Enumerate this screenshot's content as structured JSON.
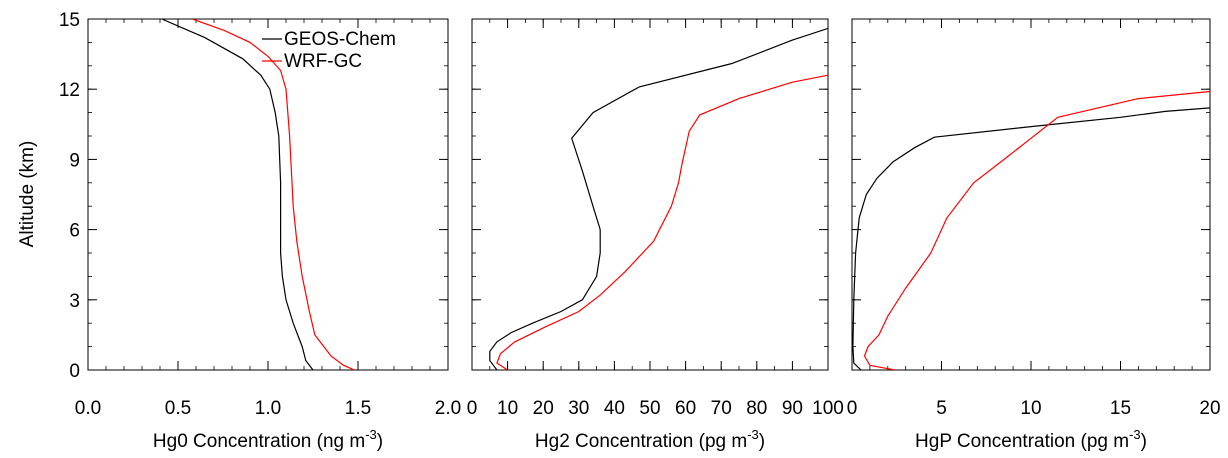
{
  "figure": {
    "ylabel": "Altitude (km)"
  },
  "legend": [
    {
      "name": "GEOS-Chem",
      "color": "#000000"
    },
    {
      "name": "WRF-GC",
      "color": "#ff0000"
    }
  ],
  "chart_data": [
    {
      "type": "line",
      "xlabel": "Hg0 Concentration (ng m",
      "xlabel_sup": "-3",
      "xlabel_close": ")",
      "ylabel": "Altitude (km)",
      "xlim": [
        0,
        2
      ],
      "ylim": [
        0,
        15
      ],
      "xticks": [
        0.0,
        0.5,
        1.0,
        1.5,
        2.0
      ],
      "xtick_labels": [
        "0.0",
        "0.5",
        "1.0",
        "1.5",
        "2.0"
      ],
      "yticks": [
        0,
        3,
        6,
        9,
        12,
        15
      ],
      "ytick_labels": [
        "0",
        "3",
        "6",
        "9",
        "12",
        "15"
      ],
      "legend_position": "top-right",
      "grid": false,
      "series": [
        {
          "name": "GEOS-Chem",
          "color": "#000000",
          "x": [
            1.25,
            1.21,
            1.19,
            1.14,
            1.1,
            1.08,
            1.07,
            1.07,
            1.07,
            1.07,
            1.06,
            1.04,
            1.01,
            0.96,
            0.86,
            0.65,
            0.41
          ],
          "y": [
            0,
            0.4,
            1.0,
            2.0,
            3.0,
            4.0,
            5.0,
            6.0,
            7.0,
            8.0,
            10.0,
            11.0,
            12.0,
            12.6,
            13.3,
            14.2,
            15.0
          ]
        },
        {
          "name": "WRF-GC",
          "color": "#ff0000",
          "x": [
            1.48,
            1.42,
            1.35,
            1.26,
            1.23,
            1.19,
            1.16,
            1.14,
            1.13,
            1.12,
            1.11,
            1.1,
            1.07,
            1.0,
            0.9,
            0.76,
            0.58
          ],
          "y": [
            0,
            0.2,
            0.6,
            1.5,
            2.5,
            4.0,
            5.5,
            7.0,
            8.5,
            10.0,
            11.0,
            12.0,
            12.8,
            13.4,
            14.0,
            14.5,
            15.0
          ]
        }
      ]
    },
    {
      "type": "line",
      "xlabel": "Hg2 Concentration (pg m",
      "xlabel_sup": "-3",
      "xlabel_close": ")",
      "xlim": [
        0,
        100
      ],
      "ylim": [
        0,
        15
      ],
      "xticks": [
        0,
        10,
        20,
        30,
        40,
        50,
        60,
        70,
        80,
        90,
        100
      ],
      "xtick_labels": [
        "0",
        "10",
        "20",
        "30",
        "40",
        "50",
        "60",
        "70",
        "80",
        "90",
        "100"
      ],
      "yticks": [
        0,
        3,
        6,
        9,
        12,
        15
      ],
      "grid": false,
      "series": [
        {
          "name": "GEOS-Chem",
          "color": "#000000",
          "x": [
            7,
            5,
            5,
            7,
            11,
            17,
            25,
            31,
            35,
            36,
            36,
            34,
            31,
            28,
            34,
            47,
            73,
            90,
            100
          ],
          "y": [
            0,
            0.4,
            0.8,
            1.2,
            1.6,
            2.0,
            2.5,
            3.0,
            4.0,
            5.0,
            6.0,
            7.0,
            8.5,
            9.9,
            11.0,
            12.1,
            13.1,
            14.1,
            14.6
          ]
        },
        {
          "name": "WRF-GC",
          "color": "#ff0000",
          "x": [
            10,
            7,
            8,
            12,
            20,
            30,
            36,
            43,
            51,
            56,
            58,
            59,
            60,
            61,
            64,
            75,
            90,
            100
          ],
          "y": [
            0,
            0.3,
            0.7,
            1.2,
            1.8,
            2.5,
            3.2,
            4.2,
            5.5,
            7.0,
            8.0,
            8.8,
            9.5,
            10.2,
            10.9,
            11.6,
            12.3,
            12.6
          ]
        }
      ]
    },
    {
      "type": "line",
      "xlabel": "HgP Concentration (pg m",
      "xlabel_sup": "-3",
      "xlabel_close": ")",
      "xlim": [
        0,
        20
      ],
      "ylim": [
        0,
        15
      ],
      "xticks": [
        0,
        5,
        10,
        15,
        20
      ],
      "xtick_labels": [
        "0",
        "5",
        "10",
        "15",
        "20"
      ],
      "yticks": [
        0,
        3,
        6,
        9,
        12,
        15
      ],
      "grid": false,
      "series": [
        {
          "name": "GEOS-Chem",
          "color": "#000000",
          "x": [
            0.5,
            0.1,
            0.05,
            0.1,
            0.2,
            0.4,
            0.8,
            1.4,
            2.3,
            3.5,
            4.6,
            10.0,
            15.0,
            17.5,
            20.0
          ],
          "y": [
            0,
            0.3,
            1.0,
            3.0,
            5.0,
            6.5,
            7.5,
            8.2,
            8.9,
            9.5,
            9.95,
            10.4,
            10.8,
            11.05,
            11.2
          ]
        },
        {
          "name": "WRF-GC",
          "color": "#ff0000",
          "x": [
            2.4,
            1.0,
            0.7,
            0.9,
            1.5,
            2.0,
            3.0,
            4.4,
            5.3,
            6.8,
            8.5,
            10.0,
            11.5,
            16.0,
            20.0
          ],
          "y": [
            0,
            0.2,
            0.6,
            1.0,
            1.5,
            2.3,
            3.5,
            5.0,
            6.5,
            8.0,
            9.0,
            9.9,
            10.8,
            11.6,
            11.9
          ]
        }
      ]
    }
  ]
}
